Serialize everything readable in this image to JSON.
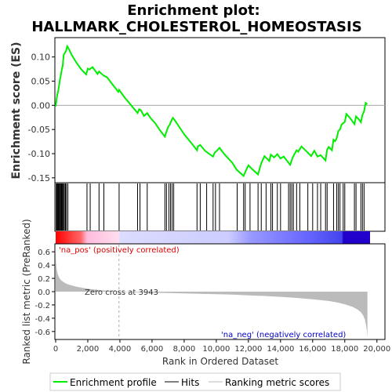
{
  "chart_data": {
    "type": "line",
    "title": "Enrichment plot:\nHALLMARK_CHOLESTEROL_HOMEOSTASIS",
    "title_lines": [
      "Enrichment plot:",
      "HALLMARK_CHOLESTEROL_HOMEOSTASIS"
    ],
    "es_panel": {
      "ylabel": "Enrichment score (ES)",
      "ylim": [
        -0.16,
        0.14
      ],
      "yticks": [
        -0.15,
        -0.1,
        -0.05,
        0.0,
        0.05,
        0.1
      ],
      "ytick_labels": [
        "-0.15",
        "-0.10",
        "-0.05",
        "0.00",
        "0.05",
        "0.10"
      ],
      "series": [
        {
          "name": "Enrichment profile",
          "color": "#00ee00",
          "x": [
            0,
            60,
            100,
            150,
            200,
            260,
            320,
            380,
            440,
            500,
            560,
            640,
            720,
            800,
            1000,
            1300,
            1600,
            1900,
            2000,
            2100,
            2300,
            2600,
            2700,
            3000,
            3200,
            3500,
            3900,
            3950,
            4300,
            4700,
            5100,
            5200,
            5300,
            5500,
            5700,
            5900,
            6200,
            6500,
            6800,
            6900,
            7000,
            7100,
            7200,
            7300,
            7400,
            7600,
            8000,
            8400,
            8800,
            8850,
            9000,
            9300,
            9500,
            9800,
            9900,
            10000,
            10200,
            10500,
            11000,
            11200,
            11300,
            11700,
            11900,
            12000,
            12200,
            12600,
            12700,
            12800,
            13000,
            13300,
            13400,
            13600,
            13800,
            14000,
            14200,
            14600,
            14700,
            14800,
            15000,
            15100,
            15300,
            15700,
            15900,
            16100,
            16300,
            16500,
            16800,
            16900,
            17000,
            17200,
            17300,
            17400,
            17500,
            17600,
            17700,
            17800,
            18000,
            18100,
            18300,
            18500,
            18600,
            18700,
            18900,
            19000,
            19100,
            19200,
            19300,
            19400
          ],
          "y": [
            -0.002,
            0.012,
            0.022,
            0.028,
            0.038,
            0.052,
            0.062,
            0.074,
            0.082,
            0.104,
            0.108,
            0.112,
            0.122,
            0.118,
            0.104,
            0.088,
            0.074,
            0.064,
            0.076,
            0.074,
            0.079,
            0.065,
            0.07,
            0.061,
            0.058,
            0.045,
            0.028,
            0.032,
            0.016,
            0.0,
            -0.016,
            -0.008,
            -0.01,
            -0.022,
            -0.016,
            -0.026,
            -0.037,
            -0.052,
            -0.065,
            -0.054,
            -0.045,
            -0.04,
            -0.032,
            -0.026,
            -0.03,
            -0.04,
            -0.06,
            -0.076,
            -0.093,
            -0.085,
            -0.082,
            -0.094,
            -0.099,
            -0.106,
            -0.098,
            -0.095,
            -0.088,
            -0.101,
            -0.119,
            -0.13,
            -0.134,
            -0.146,
            -0.131,
            -0.124,
            -0.131,
            -0.143,
            -0.131,
            -0.12,
            -0.105,
            -0.115,
            -0.102,
            -0.108,
            -0.101,
            -0.11,
            -0.106,
            -0.123,
            -0.113,
            -0.105,
            -0.093,
            -0.096,
            -0.085,
            -0.098,
            -0.105,
            -0.094,
            -0.106,
            -0.103,
            -0.114,
            -0.092,
            -0.086,
            -0.093,
            -0.071,
            -0.074,
            -0.068,
            -0.053,
            -0.05,
            -0.04,
            -0.034,
            -0.018,
            -0.025,
            -0.034,
            -0.039,
            -0.023,
            -0.03,
            -0.035,
            -0.02,
            -0.012,
            0.005,
            0.002
          ]
        }
      ]
    },
    "hits_panel": {
      "hit_positions": [
        30,
        80,
        120,
        170,
        210,
        260,
        300,
        350,
        390,
        430,
        490,
        540,
        610,
        670,
        760,
        1950,
        2150,
        2700,
        3000,
        3950,
        5100,
        5250,
        5700,
        6800,
        6900,
        7050,
        7150,
        7250,
        7350,
        8800,
        9000,
        9400,
        9800,
        9950,
        10200,
        11300,
        11700,
        11800,
        12100,
        12600,
        12800,
        13100,
        13400,
        13500,
        13800,
        14000,
        14500,
        14600,
        14700,
        14800,
        15000,
        15200,
        15700,
        16000,
        16300,
        16500,
        16800,
        16900,
        17300,
        17500,
        17600,
        17700,
        17900,
        18000,
        18600,
        18700,
        19000,
        19100,
        19200
      ]
    },
    "rank_panel": {
      "ylabel": "Ranked list metric (PreRanked)",
      "ylim": [
        -0.72,
        0.72
      ],
      "yticks": [
        -0.6,
        -0.4,
        -0.2,
        0.0,
        0.2,
        0.4,
        0.6
      ],
      "ytick_labels": [
        "-0.6",
        "-0.4",
        "-0.2",
        "0.0",
        "0.2",
        "0.4",
        "0.6"
      ],
      "metric_x": [
        0,
        20,
        60,
        120,
        200,
        300,
        450,
        650,
        900,
        1200,
        1600,
        2000,
        2500,
        3000,
        3500,
        3943,
        5000,
        7000,
        9000,
        11000,
        12000,
        13000,
        14000,
        15000,
        16000,
        17000,
        17500,
        18000,
        18500,
        18800,
        19000,
        19150,
        19250,
        19320,
        19380,
        19410
      ],
      "metric_y": [
        0.6,
        0.45,
        0.34,
        0.27,
        0.22,
        0.18,
        0.15,
        0.12,
        0.1,
        0.08,
        0.06,
        0.045,
        0.03,
        0.018,
        0.008,
        0.0,
        -0.008,
        -0.02,
        -0.032,
        -0.045,
        -0.055,
        -0.065,
        -0.078,
        -0.095,
        -0.115,
        -0.14,
        -0.16,
        -0.19,
        -0.23,
        -0.27,
        -0.31,
        -0.36,
        -0.42,
        -0.5,
        -0.6,
        -0.7
      ],
      "zero_cross": 3943,
      "zero_cross_label": "Zero cross at 3943",
      "pos_label": "'na_pos' (positively correlated)",
      "neg_label": "'na_neg' (negatively correlated)",
      "fill_color": "#bbbbbb"
    },
    "xaxis": {
      "xlabel": "Rank in Ordered Dataset",
      "xlim": [
        0,
        20500
      ],
      "n_genes": 19420,
      "xticks": [
        0,
        2000,
        4000,
        6000,
        8000,
        10000,
        12000,
        14000,
        16000,
        18000,
        20000
      ],
      "xtick_labels": [
        "0",
        "2,000",
        "4,000",
        "6,000",
        "8,000",
        "10,000",
        "12,000",
        "14,000",
        "16,000",
        "18,000",
        "20,000"
      ]
    },
    "legend": {
      "placement": "bottom",
      "items": [
        {
          "label": "Enrichment profile",
          "color": "#00ee00",
          "style": "line-thick"
        },
        {
          "label": "Hits",
          "color": "#000000",
          "style": "line"
        },
        {
          "label": "Ranking metric scores",
          "color": "#bbbbbb",
          "style": "line"
        }
      ]
    },
    "colors": {
      "enrichment": "#00ee00",
      "hits": "#000000",
      "metric_fill": "#bbbbbb",
      "zero_line": "#aaaaaa",
      "pos_text": "#dd0000",
      "neg_text": "#0000cc"
    }
  }
}
